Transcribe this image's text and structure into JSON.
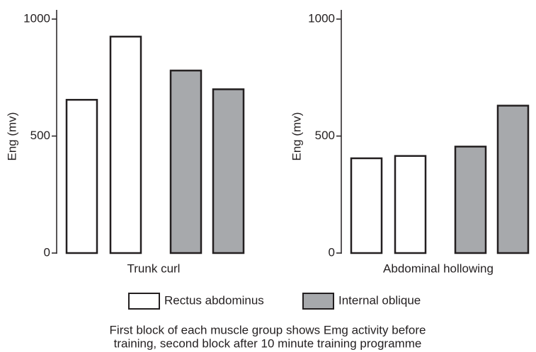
{
  "chart_data": [
    {
      "type": "bar",
      "xlabel": "Trunk curl",
      "ylabel": "Eng (mv)",
      "ylim": [
        0,
        1000
      ],
      "yticks": [
        0,
        500,
        1000
      ],
      "series": [
        {
          "name": "Rectus abdominus",
          "color": "#ffffff",
          "values": [
            655,
            925
          ]
        },
        {
          "name": "Internal oblique",
          "color": "#a7a9ac",
          "values": [
            780,
            700
          ]
        }
      ]
    },
    {
      "type": "bar",
      "xlabel": "Abdominal hollowing",
      "ylabel": "Eng (mv)",
      "ylim": [
        0,
        1000
      ],
      "yticks": [
        0,
        500,
        1000
      ],
      "series": [
        {
          "name": "Rectus abdominus",
          "color": "#ffffff",
          "values": [
            405,
            415
          ]
        },
        {
          "name": "Internal oblique",
          "color": "#a7a9ac",
          "values": [
            455,
            630
          ]
        }
      ]
    }
  ],
  "caption": [
    "First block of each muscle group shows Emg activity before",
    "training, second block after 10 minute training programme"
  ]
}
